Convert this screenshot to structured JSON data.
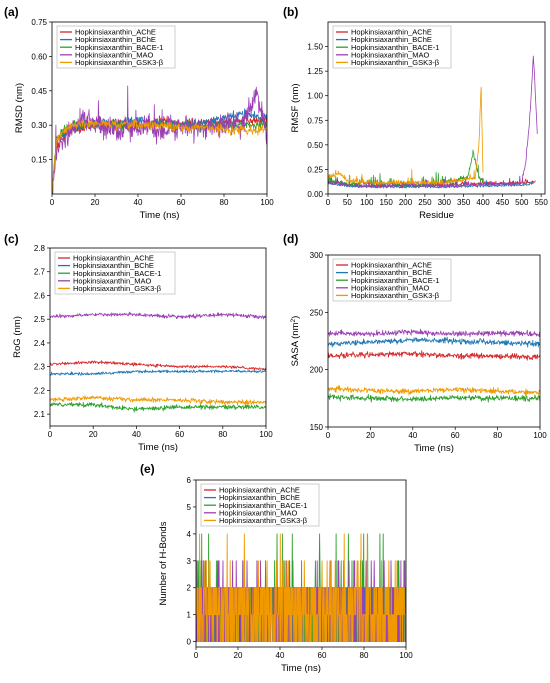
{
  "colors": {
    "AChE": "#d62728",
    "BChE": "#1f77b4",
    "BACE-1": "#2ca02c",
    "MAO": "#9b3fb5",
    "GSK3-beta": "#f09a00"
  },
  "chart_data": [
    {
      "panel": "(a)",
      "type": "line",
      "xlabel": "Time (ns)",
      "ylabel": "RMSD (nm)",
      "xlim": [
        0,
        100
      ],
      "ylim": [
        0,
        0.75
      ],
      "xticks": [
        0,
        20,
        40,
        60,
        80,
        100
      ],
      "yticks": [
        "0.15",
        "0.30",
        "0.45",
        "0.60",
        "0.75"
      ],
      "legend": "top-left",
      "series": [
        {
          "name": "Hopkinsiaxanthin_AChE",
          "key": "AChE",
          "x": [
            0,
            2,
            5,
            10,
            20,
            30,
            40,
            50,
            60,
            70,
            80,
            90,
            100
          ],
          "values": [
            0.0,
            0.2,
            0.25,
            0.28,
            0.3,
            0.31,
            0.3,
            0.32,
            0.3,
            0.31,
            0.31,
            0.32,
            0.32
          ],
          "noise": 0.02
        },
        {
          "name": "Hopkinsiaxanthin_BChE",
          "key": "BChE",
          "x": [
            0,
            2,
            5,
            10,
            20,
            30,
            40,
            50,
            60,
            70,
            80,
            90,
            100
          ],
          "values": [
            0.0,
            0.22,
            0.26,
            0.29,
            0.31,
            0.31,
            0.32,
            0.31,
            0.3,
            0.31,
            0.33,
            0.35,
            0.33
          ],
          "noise": 0.02
        },
        {
          "name": "Hopkinsiaxanthin_BACE-1",
          "key": "BACE-1",
          "x": [
            0,
            2,
            5,
            10,
            20,
            30,
            40,
            50,
            60,
            70,
            80,
            90,
            100
          ],
          "values": [
            0.0,
            0.24,
            0.28,
            0.3,
            0.3,
            0.3,
            0.29,
            0.3,
            0.3,
            0.29,
            0.3,
            0.3,
            0.3
          ],
          "noise": 0.02
        },
        {
          "name": "Hopkinsiaxanthin_MAO",
          "key": "MAO",
          "x": [
            0,
            2,
            5,
            10,
            15,
            20,
            30,
            40,
            50,
            60,
            70,
            80,
            90,
            95,
            100
          ],
          "values": [
            0.0,
            0.2,
            0.23,
            0.28,
            0.35,
            0.3,
            0.28,
            0.3,
            0.27,
            0.29,
            0.28,
            0.3,
            0.31,
            0.45,
            0.26
          ],
          "noise": 0.05
        },
        {
          "name": "Hopkinsiaxanthin_GSK3-β",
          "key": "GSK3-beta",
          "x": [
            0,
            2,
            5,
            10,
            20,
            30,
            40,
            50,
            60,
            70,
            80,
            90,
            100
          ],
          "values": [
            0.0,
            0.22,
            0.27,
            0.3,
            0.31,
            0.3,
            0.3,
            0.3,
            0.29,
            0.29,
            0.28,
            0.28,
            0.28
          ],
          "noise": 0.02
        }
      ]
    },
    {
      "panel": "(b)",
      "type": "line",
      "xlabel": "Residue",
      "ylabel": "RMSF (nm)",
      "xlim": [
        0,
        560
      ],
      "ylim": [
        0,
        1.75
      ],
      "xticks": [
        0,
        50,
        100,
        150,
        200,
        250,
        300,
        350,
        400,
        450,
        500,
        550
      ],
      "yticks": [
        "0.00",
        "0.25",
        "0.50",
        "0.75",
        "1.00",
        "1.25",
        "1.50"
      ],
      "legend": "top-left",
      "series": [
        {
          "name": "Hopkinsiaxanthin_AChE",
          "key": "AChE",
          "x": [
            0,
            50,
            100,
            200,
            300,
            400,
            500,
            535
          ],
          "values": [
            0.12,
            0.08,
            0.07,
            0.07,
            0.08,
            0.09,
            0.1,
            0.12
          ],
          "noise": 0.03
        },
        {
          "name": "Hopkinsiaxanthin_BChE",
          "key": "BChE",
          "x": [
            0,
            50,
            100,
            200,
            300,
            400,
            500,
            530
          ],
          "values": [
            0.1,
            0.07,
            0.06,
            0.06,
            0.06,
            0.07,
            0.08,
            0.1
          ],
          "noise": 0.03
        },
        {
          "name": "Hopkinsiaxanthin_BACE-1",
          "key": "BACE-1",
          "x": [
            0,
            50,
            100,
            200,
            300,
            360,
            375,
            390,
            400
          ],
          "values": [
            0.12,
            0.08,
            0.1,
            0.08,
            0.1,
            0.15,
            0.4,
            0.15,
            0.1
          ],
          "noise": 0.04
        },
        {
          "name": "Hopkinsiaxanthin_MAO",
          "key": "MAO",
          "x": [
            0,
            50,
            100,
            200,
            300,
            400,
            500,
            510,
            520,
            530,
            540
          ],
          "values": [
            0.1,
            0.08,
            0.07,
            0.08,
            0.07,
            0.08,
            0.1,
            0.3,
            0.7,
            1.4,
            0.6
          ],
          "noise": 0.03
        },
        {
          "name": "Hopkinsiaxanthin_GSK3-β",
          "key": "GSK3-beta",
          "x": [
            0,
            30,
            50,
            100,
            200,
            300,
            380,
            390,
            395,
            400
          ],
          "values": [
            0.15,
            0.2,
            0.12,
            0.1,
            0.1,
            0.1,
            0.15,
            0.5,
            1.1,
            0.2
          ],
          "noise": 0.04
        }
      ]
    },
    {
      "panel": "(c)",
      "type": "line",
      "xlabel": "Time (ns)",
      "ylabel": "RoG (nm)",
      "xlim": [
        0,
        100
      ],
      "ylim": [
        2.05,
        2.8
      ],
      "xticks": [
        0,
        20,
        40,
        60,
        80,
        100
      ],
      "yticks": [
        "2.1",
        "2.2",
        "2.3",
        "2.4",
        "2.5",
        "2.6",
        "2.7",
        "2.8"
      ],
      "legend": "top-left",
      "series": [
        {
          "name": "Hopkinsiaxanthin_AChE",
          "key": "AChE",
          "x": [
            0,
            20,
            40,
            60,
            80,
            100
          ],
          "values": [
            2.31,
            2.32,
            2.31,
            2.3,
            2.3,
            2.29
          ],
          "noise": 0.006
        },
        {
          "name": "Hopkinsiaxanthin_BChE",
          "key": "BChE",
          "x": [
            0,
            20,
            40,
            60,
            80,
            100
          ],
          "values": [
            2.27,
            2.27,
            2.28,
            2.28,
            2.28,
            2.28
          ],
          "noise": 0.006
        },
        {
          "name": "Hopkinsiaxanthin_BACE-1",
          "key": "BACE-1",
          "x": [
            0,
            20,
            40,
            60,
            80,
            100
          ],
          "values": [
            2.14,
            2.14,
            2.12,
            2.13,
            2.13,
            2.13
          ],
          "noise": 0.01
        },
        {
          "name": "Hopkinsiaxanthin_MAO",
          "key": "MAO",
          "x": [
            0,
            20,
            40,
            60,
            80,
            100
          ],
          "values": [
            2.51,
            2.52,
            2.52,
            2.51,
            2.52,
            2.51
          ],
          "noise": 0.008
        },
        {
          "name": "Hopkinsiaxanthin_GSK3-β",
          "key": "GSK3-beta",
          "x": [
            0,
            20,
            40,
            60,
            80,
            100
          ],
          "values": [
            2.16,
            2.17,
            2.16,
            2.16,
            2.15,
            2.15
          ],
          "noise": 0.01
        }
      ]
    },
    {
      "panel": "(d)",
      "type": "line",
      "xlabel": "Time (ns)",
      "ylabel": "SASA (nm",
      "ylabel_sup": "2",
      "ylabel_end": ")",
      "xlim": [
        0,
        100
      ],
      "ylim": [
        150,
        300
      ],
      "xticks": [
        0,
        20,
        40,
        60,
        80,
        100
      ],
      "yticks": [
        "150",
        "200",
        "250",
        "300"
      ],
      "legend": "top-left",
      "series": [
        {
          "name": "Hopkinsiaxanthin_AChE",
          "key": "AChE",
          "x": [
            0,
            20,
            40,
            60,
            80,
            100
          ],
          "values": [
            212,
            213,
            214,
            212,
            212,
            211
          ],
          "noise": 2.5
        },
        {
          "name": "Hopkinsiaxanthin_BChE",
          "key": "BChE",
          "x": [
            0,
            20,
            40,
            60,
            80,
            100
          ],
          "values": [
            222,
            224,
            226,
            225,
            224,
            222
          ],
          "noise": 2.5
        },
        {
          "name": "Hopkinsiaxanthin_BACE-1",
          "key": "BACE-1",
          "x": [
            0,
            20,
            40,
            60,
            80,
            100
          ],
          "values": [
            176,
            175,
            174,
            176,
            175,
            175
          ],
          "noise": 2.5
        },
        {
          "name": "Hopkinsiaxanthin_MAO",
          "key": "MAO",
          "x": [
            0,
            20,
            40,
            60,
            80,
            100
          ],
          "values": [
            232,
            231,
            233,
            231,
            232,
            231
          ],
          "noise": 2.5
        },
        {
          "name": "Hopkinsiaxanthin_GSK3-β",
          "key": "GSK3-beta",
          "x": [
            0,
            20,
            40,
            60,
            80,
            100
          ],
          "values": [
            183,
            182,
            181,
            183,
            181,
            180
          ],
          "noise": 2.5
        }
      ]
    },
    {
      "panel": "(e)",
      "type": "line",
      "xlabel": "Time (ns)",
      "ylabel": "Number of H-Bonds",
      "xlim": [
        0,
        100
      ],
      "ylim": [
        -0.2,
        6
      ],
      "xticks": [
        0,
        20,
        40,
        60,
        80,
        100
      ],
      "yticks": [
        "0",
        "1",
        "2",
        "3",
        "4",
        "5",
        "6"
      ],
      "legend": "top-left",
      "series": [
        {
          "name": "Hopkinsiaxanthin_AChE",
          "key": "AChE",
          "levels": [
            0,
            1,
            2
          ],
          "max": 2
        },
        {
          "name": "Hopkinsiaxanthin_BChE",
          "key": "BChE",
          "levels": [
            0,
            1,
            2
          ],
          "max": 2
        },
        {
          "name": "Hopkinsiaxanthin_BACE-1",
          "key": "BACE-1",
          "levels": [
            0,
            1,
            2,
            3,
            4
          ],
          "max": 4
        },
        {
          "name": "Hopkinsiaxanthin_MAO",
          "key": "MAO",
          "levels": [
            0,
            1,
            2,
            3
          ],
          "max": 3
        },
        {
          "name": "Hopkinsiaxanthin_GSK3-β",
          "key": "GSK3-beta",
          "levels": [
            0,
            1,
            2,
            3,
            4
          ],
          "max": 4
        }
      ]
    }
  ]
}
